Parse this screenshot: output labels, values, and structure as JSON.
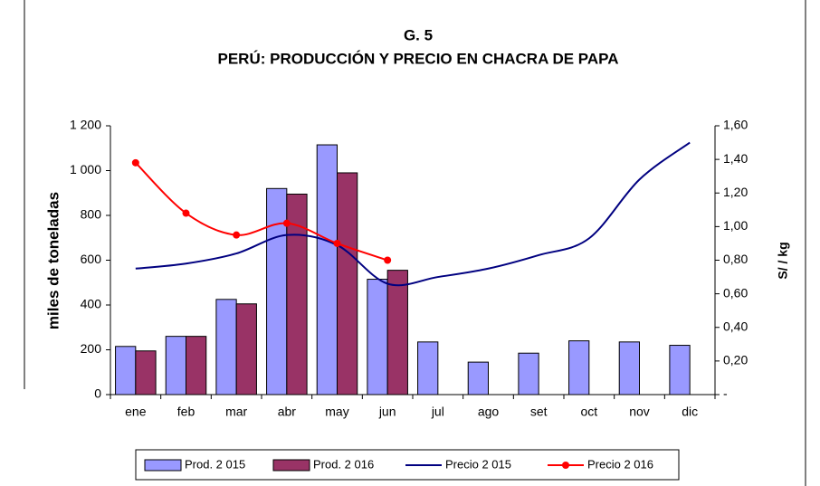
{
  "chart_data": {
    "type": "bar-line",
    "title": "G. 5",
    "subtitle": "PERÚ: PRODUCCIÓN Y PRECIO EN CHACRA DE PAPA",
    "ylabel": "miles de toneladas",
    "y2label": "S/ / kg",
    "categories": [
      "ene",
      "feb",
      "mar",
      "abr",
      "may",
      "jun",
      "jul",
      "ago",
      "set",
      "oct",
      "nov",
      "dic"
    ],
    "series": [
      {
        "name": "Prod. 2 015",
        "type": "bar",
        "color": "#9999ff",
        "values": [
          215,
          260,
          425,
          920,
          1115,
          515,
          235,
          145,
          185,
          240,
          235,
          220
        ]
      },
      {
        "name": "Prod. 2 016",
        "type": "bar",
        "color": "#993366",
        "values": [
          195,
          260,
          405,
          895,
          990,
          555,
          null,
          null,
          null,
          null,
          null,
          null
        ]
      },
      {
        "name": "Precio 2 015",
        "type": "line",
        "axis": "y2",
        "color": "#000080",
        "values": [
          0.75,
          0.78,
          0.84,
          0.95,
          0.89,
          0.66,
          0.7,
          0.75,
          0.83,
          0.93,
          1.28,
          1.5
        ]
      },
      {
        "name": "Precio 2 016",
        "type": "line",
        "axis": "y2",
        "color": "#ff0000",
        "markers": true,
        "values": [
          1.38,
          1.08,
          0.95,
          1.02,
          0.9,
          0.8,
          null,
          null,
          null,
          null,
          null,
          null
        ]
      }
    ],
    "ylim": [
      0,
      1200
    ],
    "yticks": [
      0,
      200,
      400,
      600,
      800,
      {
        "value": 1000,
        "label": "1 000"
      },
      {
        "value": 1200,
        "label": "1 200"
      }
    ],
    "y2lim": [
      0,
      1.6
    ],
    "y2ticks": [
      {
        "value": 0,
        "label": "-"
      },
      {
        "value": 0.2,
        "label": "0,20"
      },
      {
        "value": 0.4,
        "label": "0,40"
      },
      {
        "value": 0.6,
        "label": "0,60"
      },
      {
        "value": 0.8,
        "label": "0,80"
      },
      {
        "value": 1.0,
        "label": "1,00"
      },
      {
        "value": 1.2,
        "label": "1,20"
      },
      {
        "value": 1.4,
        "label": "1,40"
      },
      {
        "value": 1.6,
        "label": "1,60"
      }
    ],
    "legend": "bottom"
  }
}
